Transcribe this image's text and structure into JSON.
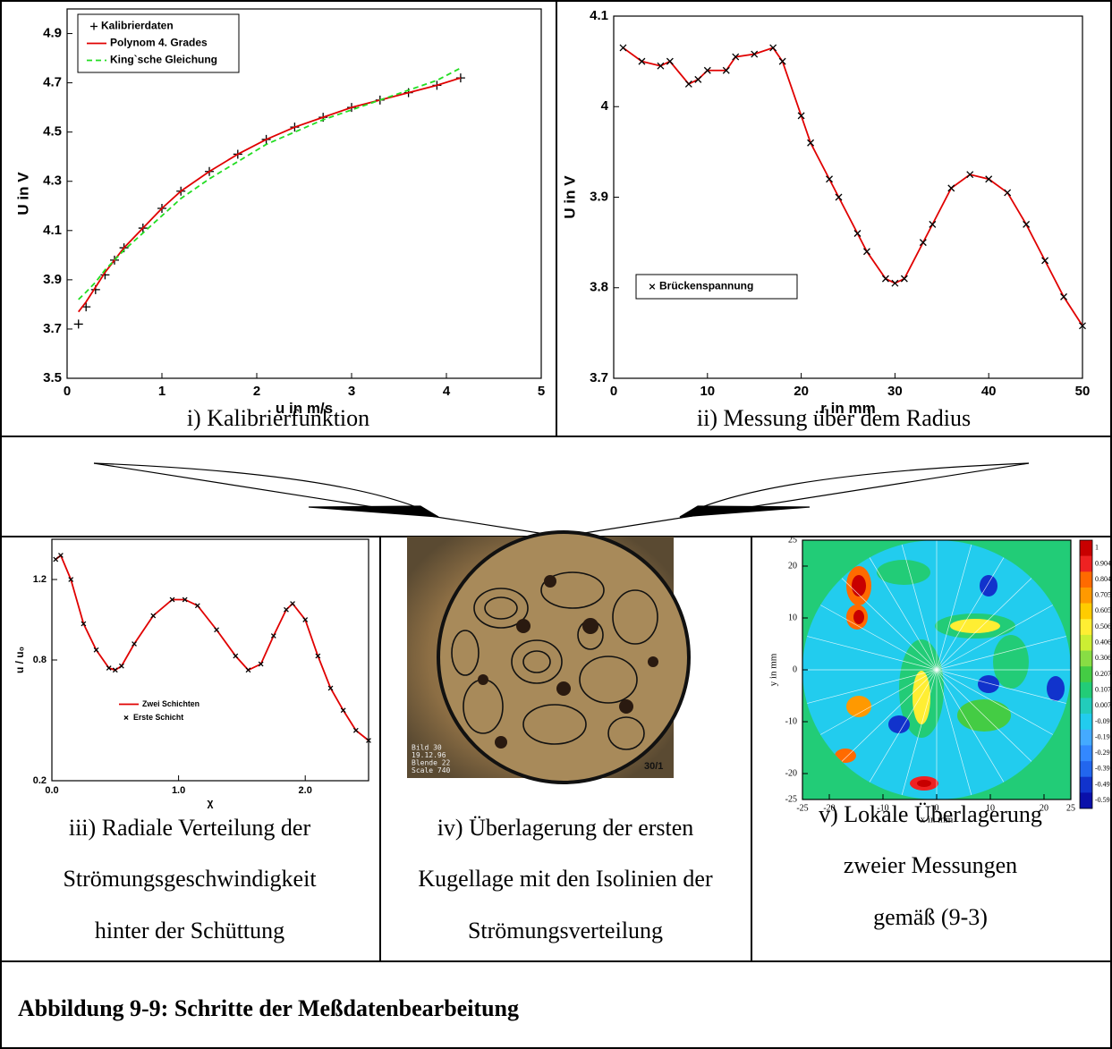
{
  "chart_data": [
    {
      "type": "line",
      "xlabel": "u in m/s",
      "ylabel": "U in V",
      "x": [
        0.12,
        0.2,
        0.3,
        0.4,
        0.5,
        0.6,
        0.8,
        1.0,
        1.2,
        1.5,
        1.8,
        2.1,
        2.4,
        2.7,
        3.0,
        3.3,
        3.6,
        3.9,
        4.15
      ],
      "xlim": [
        0,
        5
      ],
      "xticks": [
        0,
        1,
        2,
        3,
        4,
        5
      ],
      "ylim": [
        3.5,
        5.0
      ],
      "yticks": [
        3.5,
        3.7,
        3.9,
        4.1,
        4.3,
        4.5,
        4.7,
        4.9
      ],
      "legend": "upper left",
      "series": [
        {
          "name": "Kalibrierdaten",
          "color": "#000000",
          "marker": "plus",
          "values": [
            3.72,
            3.79,
            3.86,
            3.92,
            3.98,
            4.03,
            4.11,
            4.19,
            4.26,
            4.34,
            4.41,
            4.47,
            4.52,
            4.56,
            4.6,
            4.63,
            4.66,
            4.69,
            4.72
          ]
        },
        {
          "name": "Polynom 4. Grades",
          "color": "#e00000",
          "line": "solid",
          "values": [
            3.77,
            3.81,
            3.87,
            3.93,
            3.98,
            4.03,
            4.11,
            4.19,
            4.26,
            4.34,
            4.41,
            4.47,
            4.52,
            4.56,
            4.6,
            4.63,
            4.66,
            4.69,
            4.72
          ]
        },
        {
          "name": "King`sche Gleichung",
          "color": "#22dd22",
          "line": "dashed",
          "values": [
            3.82,
            3.85,
            3.89,
            3.94,
            3.98,
            4.02,
            4.09,
            4.16,
            4.23,
            4.31,
            4.38,
            4.45,
            4.5,
            4.55,
            4.59,
            4.63,
            4.67,
            4.71,
            4.76
          ]
        }
      ]
    },
    {
      "type": "line",
      "xlabel": "r in mm",
      "ylabel": "U in V",
      "x": [
        1,
        3,
        5,
        6,
        8,
        9,
        10,
        12,
        13,
        15,
        17,
        18,
        20,
        21,
        23,
        24,
        26,
        27,
        29,
        30,
        31,
        33,
        34,
        36,
        38,
        40,
        42,
        44,
        46,
        48,
        50
      ],
      "xlim": [
        0,
        50
      ],
      "xticks": [
        0,
        10,
        20,
        30,
        40,
        50
      ],
      "ylim": [
        3.7,
        4.1
      ],
      "yticks": [
        3.7,
        3.8,
        3.9,
        4,
        4.1
      ],
      "legend": "lower left",
      "series": [
        {
          "name": "Brückenspannung",
          "color": "#000000",
          "marker": "cross",
          "line": "solid",
          "line_color": "#e00000",
          "values": [
            4.065,
            4.05,
            4.045,
            4.05,
            4.025,
            4.03,
            4.04,
            4.04,
            4.055,
            4.058,
            4.065,
            4.05,
            3.99,
            3.96,
            3.92,
            3.9,
            3.86,
            3.84,
            3.81,
            3.805,
            3.81,
            3.85,
            3.87,
            3.91,
            3.925,
            3.92,
            3.905,
            3.87,
            3.83,
            3.79,
            3.758
          ]
        }
      ]
    },
    {
      "type": "line",
      "xlabel": "χ",
      "ylabel": "u / u₀",
      "x": [
        0.03,
        0.07,
        0.15,
        0.25,
        0.35,
        0.45,
        0.5,
        0.55,
        0.65,
        0.8,
        0.95,
        1.05,
        1.15,
        1.3,
        1.45,
        1.55,
        1.65,
        1.75,
        1.85,
        1.9,
        2.0,
        2.1,
        2.2,
        2.3,
        2.4,
        2.5
      ],
      "xlim": [
        0,
        2.5
      ],
      "xticks": [
        {
          "value": 0,
          "label": "0.0"
        },
        {
          "value": 1,
          "label": "1.0"
        },
        {
          "value": 2,
          "label": "2.0"
        }
      ],
      "ylim": [
        0.2,
        1.4
      ],
      "yticks": [
        0.2,
        0.8,
        1.2
      ],
      "legend": "center left",
      "series": [
        {
          "name": "Zwei Schichten",
          "color": "#e00000",
          "line": "solid",
          "values": [
            1.3,
            1.32,
            1.2,
            0.98,
            0.85,
            0.76,
            0.75,
            0.77,
            0.88,
            1.02,
            1.1,
            1.1,
            1.07,
            0.95,
            0.82,
            0.75,
            0.78,
            0.92,
            1.05,
            1.08,
            1.0,
            0.82,
            0.66,
            0.55,
            0.45,
            0.4
          ]
        },
        {
          "name": "Erste Schicht",
          "color": "#000000",
          "marker": "cross",
          "values": [
            1.3,
            1.32,
            1.2,
            0.98,
            0.85,
            0.76,
            0.75,
            0.77,
            0.88,
            1.02,
            1.1,
            1.1,
            1.07,
            0.95,
            0.82,
            0.75,
            0.78,
            0.92,
            1.05,
            1.08,
            1.0,
            0.82,
            0.66,
            0.55,
            0.45,
            0.4
          ]
        }
      ]
    },
    {
      "type": "contour",
      "xlabel": "x in mm",
      "ylabel": "y in mm",
      "xlim": [
        -25,
        25
      ],
      "xticks": [
        -25,
        -20,
        -10,
        0,
        10,
        20,
        25
      ],
      "ylim": [
        -25,
        25
      ],
      "yticks": [
        -25,
        -20,
        -10,
        0,
        10,
        20,
        25
      ],
      "colorbar": {
        "ticks": [
          1,
          0.904,
          0.804,
          0.705,
          0.605,
          0.506,
          0.406,
          0.306,
          0.207,
          0.107,
          0.007,
          -0.09,
          -0.19,
          -0.29,
          -0.39,
          -0.49,
          -0.59
        ],
        "colors": [
          "#c80000",
          "#ee2222",
          "#ff6a00",
          "#ff9900",
          "#ffcc00",
          "#ffee33",
          "#ccee33",
          "#88dd44",
          "#44cc44",
          "#22cc77",
          "#22ccbb",
          "#22ccee",
          "#44aaff",
          "#3388ff",
          "#2266ee",
          "#1133cc",
          "#0a10aa"
        ]
      }
    }
  ],
  "photo": {
    "lines": [
      "Bild 30",
      "19.12.96",
      "Blende 22",
      "Scale 740"
    ],
    "label": "30/1"
  },
  "captions": [
    [
      "i) Kalibrierfunktion"
    ],
    [
      "ii) Messung über dem Radius"
    ],
    [
      "iii) Radiale Verteilung der",
      "Strömungsgeschwindigkeit",
      "hinter der Schüttung"
    ],
    [
      "iv) Überlagerung der ersten",
      "Kugellage mit den Isolinien der",
      "Strömungsverteilung"
    ],
    [
      "v) Lokale Überlagerung",
      "zweier Messungen",
      "gemäß (9-3)"
    ]
  ],
  "figure_caption": "Abbildung 9-9: Schritte der Meßdatenbearbeitung"
}
